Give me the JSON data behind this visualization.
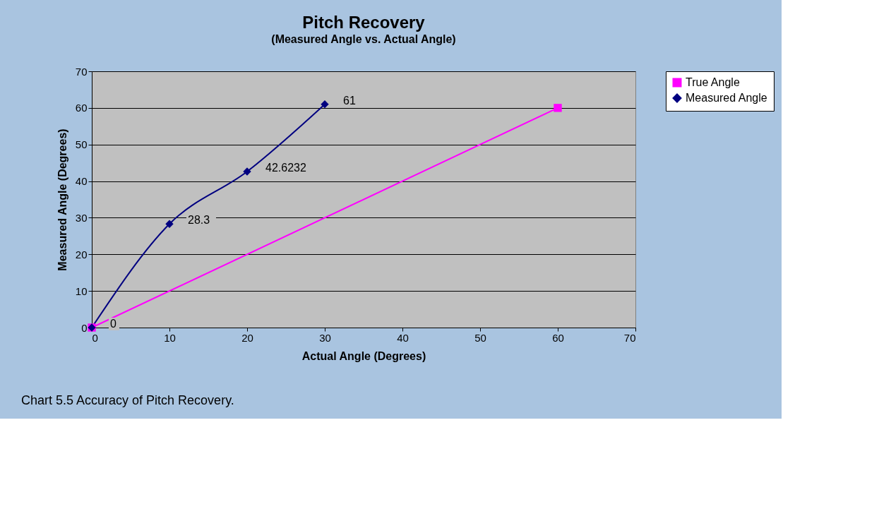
{
  "chart_data": {
    "type": "line",
    "title": "Pitch Recovery",
    "subtitle": "(Measured Angle vs. Actual Angle)",
    "xlabel": "Actual Angle (Degrees)",
    "ylabel": "Measured Angle (Degrees)",
    "series": [
      {
        "name": "True Angle",
        "color": "#ff00ff",
        "marker": "square",
        "x": [
          0,
          60
        ],
        "values": [
          0,
          60
        ]
      },
      {
        "name": "Measured Angle",
        "color": "#000080",
        "marker": "diamond",
        "x": [
          0,
          10,
          20,
          30
        ],
        "values": [
          0,
          28.3,
          42.6232,
          61
        ],
        "value_labels": [
          "0",
          "28.3",
          "42.6232",
          "61"
        ]
      }
    ],
    "xlim": [
      0,
      70
    ],
    "xticks": [
      0,
      10,
      20,
      30,
      40,
      50,
      60,
      70
    ],
    "ylim": [
      0,
      70
    ],
    "yticks": [
      0,
      10,
      20,
      30,
      40,
      50,
      60,
      70
    ],
    "grid": "y",
    "legend": "right",
    "annotations": [
      "Chart 5.5 Accuracy of Pitch Recovery."
    ]
  }
}
